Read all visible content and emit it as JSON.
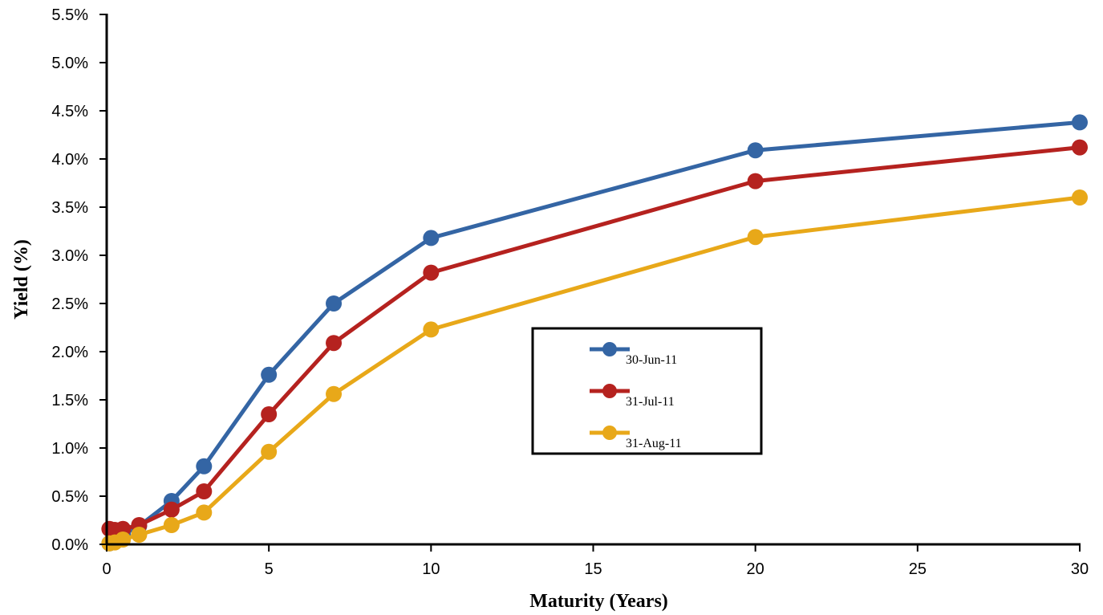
{
  "chart_data": {
    "type": "line",
    "title": "",
    "xlabel": "Maturity (Years)",
    "ylabel": "Yield (%)",
    "xlim": [
      0,
      30
    ],
    "ylim": [
      0,
      5.5
    ],
    "x_ticks": [
      0,
      5,
      10,
      15,
      20,
      25,
      30
    ],
    "x_tick_labels": [
      "0",
      "5",
      "10",
      "15",
      "20",
      "25",
      "30"
    ],
    "y_ticks": [
      0,
      0.5,
      1.0,
      1.5,
      2.0,
      2.5,
      3.0,
      3.5,
      4.0,
      4.5,
      5.0,
      5.5
    ],
    "y_tick_labels": [
      "0.0%",
      "0.5%",
      "1.0%",
      "1.5%",
      "2.0%",
      "2.5%",
      "3.0%",
      "3.5%",
      "4.0%",
      "4.5%",
      "5.0%",
      "5.5%"
    ],
    "grid": false,
    "legend_position": "center-right",
    "x": [
      0.083,
      0.25,
      0.5,
      1,
      2,
      3,
      5,
      7,
      10,
      20,
      30
    ],
    "series": [
      {
        "name": "30-Jun-11",
        "color": "#3465a4",
        "values": [
          0.01,
          0.03,
          0.1,
          0.19,
          0.45,
          0.81,
          1.76,
          2.5,
          3.18,
          4.09,
          4.38
        ]
      },
      {
        "name": "31-Jul-11",
        "color": "#b5221f",
        "values": [
          0.16,
          0.15,
          0.16,
          0.2,
          0.36,
          0.55,
          1.35,
          2.09,
          2.82,
          3.77,
          4.12
        ]
      },
      {
        "name": "31-Aug-11",
        "color": "#e8a819",
        "values": [
          0.01,
          0.02,
          0.05,
          0.1,
          0.2,
          0.33,
          0.96,
          1.56,
          2.23,
          3.19,
          3.6
        ]
      }
    ]
  }
}
